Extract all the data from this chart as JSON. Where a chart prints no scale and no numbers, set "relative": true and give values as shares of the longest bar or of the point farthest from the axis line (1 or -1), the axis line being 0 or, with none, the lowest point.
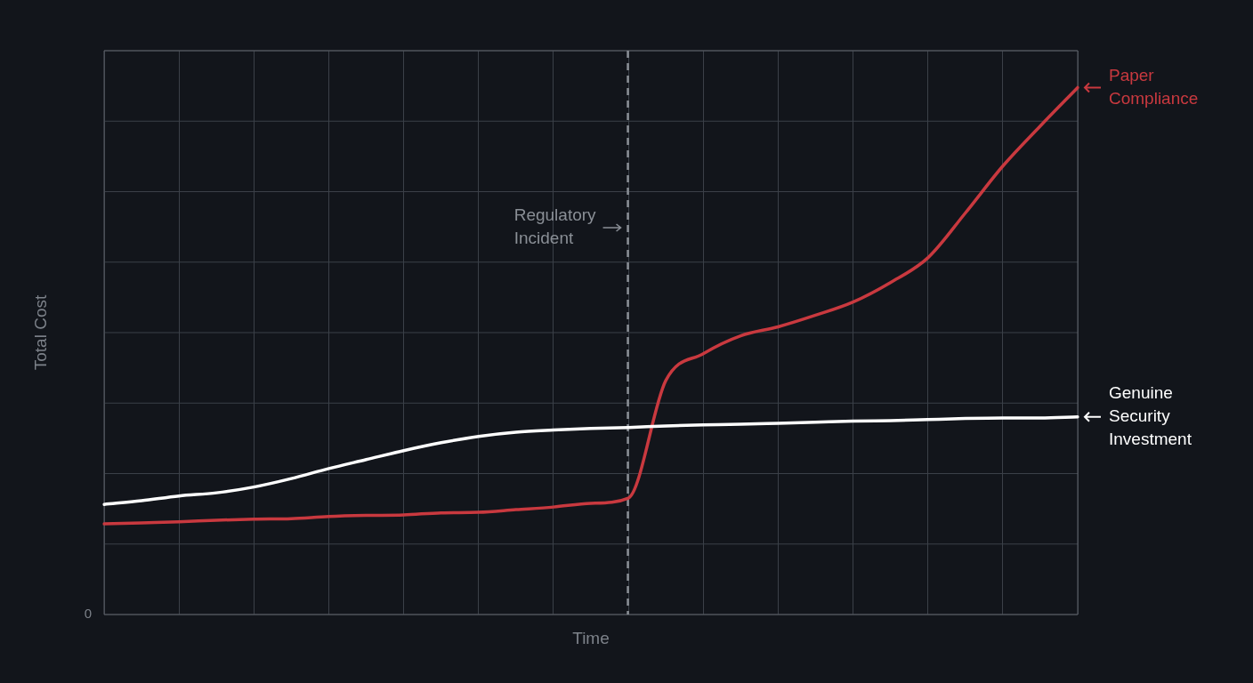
{
  "chart_data": {
    "type": "line",
    "relative": true,
    "xlabel": "Time",
    "ylabel": "Total Cost",
    "categories": [
      null,
      null,
      null,
      null,
      null,
      null,
      null,
      null,
      null,
      null,
      null,
      null,
      null,
      null,
      null,
      null,
      null,
      null,
      null,
      null,
      null,
      null,
      null,
      null,
      null,
      null,
      null
    ],
    "grid": true,
    "legend": "right",
    "marker": "none",
    "line_style": "solid",
    "series": [
      {
        "name": "Genuine Security Investment",
        "color": "#ffffff",
        "values": [
          0.209,
          0.216,
          0.225,
          0.231,
          0.242,
          0.258,
          0.277,
          0.294,
          0.311,
          0.326,
          0.338,
          0.346,
          0.35,
          0.353,
          0.355,
          0.358,
          0.36,
          0.361,
          0.363,
          0.365,
          0.367,
          0.368,
          0.37,
          0.372,
          0.373,
          0.373,
          0.375
        ]
      },
      {
        "name": "Paper Compliance",
        "color": "#c9393f",
        "values": [
          0.172,
          0.174,
          0.176,
          0.179,
          0.181,
          0.182,
          0.186,
          0.188,
          0.189,
          0.193,
          0.194,
          0.199,
          0.204,
          0.211,
          0.221,
          0.444,
          0.495,
          0.529,
          0.546,
          0.568,
          0.593,
          0.63,
          0.677,
          0.762,
          0.851,
          0.927,
          1
        ]
      }
    ],
    "annotations": [
      "Regulatory Incident",
      "0"
    ]
  }
}
